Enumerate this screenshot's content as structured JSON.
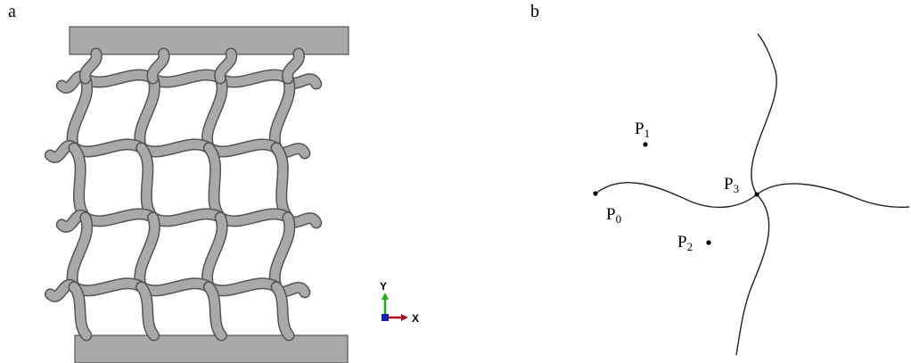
{
  "panels": {
    "a": {
      "label": "a"
    },
    "b": {
      "label": "b"
    }
  },
  "triad": {
    "y_label": "Y",
    "x_label": "X",
    "y_color": "#22aa22",
    "x_color": "#aa1122",
    "z_color": "#1122aa"
  },
  "lattice": {
    "fill": "#a9a9a9",
    "stroke": "#555555",
    "rows": 4,
    "cols": 4
  },
  "control_points": [
    {
      "name": "P",
      "sub": "0"
    },
    {
      "name": "P",
      "sub": "1"
    },
    {
      "name": "P",
      "sub": "2"
    },
    {
      "name": "P",
      "sub": "3"
    }
  ]
}
